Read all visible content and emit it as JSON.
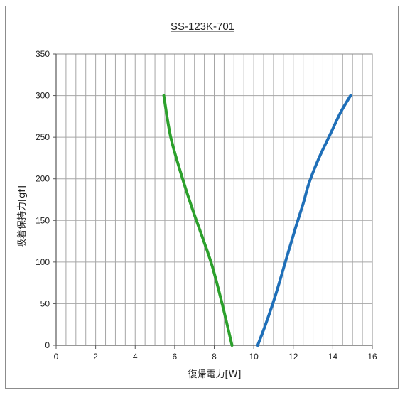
{
  "chart_data": {
    "type": "line",
    "title": "SS-123K-701",
    "xlabel": "復帰電力[W]",
    "ylabel": "吸着保持力[gf]",
    "xlim": [
      0,
      16
    ],
    "ylim": [
      0,
      350
    ],
    "xticks": [
      0,
      2,
      4,
      6,
      8,
      10,
      12,
      14,
      16
    ],
    "yticks": [
      0,
      50,
      100,
      150,
      200,
      250,
      300,
      350
    ],
    "x_minor_step": 0.5,
    "grid": true,
    "legend": "none",
    "series": [
      {
        "color": "#2ca02c",
        "points": [
          [
            5.45,
            300
          ],
          [
            5.8,
            250
          ],
          [
            6.4,
            200
          ],
          [
            6.95,
            160
          ],
          [
            7.4,
            130
          ],
          [
            7.9,
            95
          ],
          [
            8.4,
            50
          ],
          [
            8.9,
            0
          ]
        ]
      },
      {
        "color": "#1f6fb8",
        "points": [
          [
            10.2,
            0
          ],
          [
            10.6,
            25
          ],
          [
            11.1,
            60
          ],
          [
            11.6,
            100
          ],
          [
            12.1,
            140
          ],
          [
            12.5,
            170
          ],
          [
            12.8,
            195
          ],
          [
            13.3,
            225
          ],
          [
            13.9,
            255
          ],
          [
            14.4,
            280
          ],
          [
            14.9,
            300
          ]
        ]
      }
    ]
  }
}
